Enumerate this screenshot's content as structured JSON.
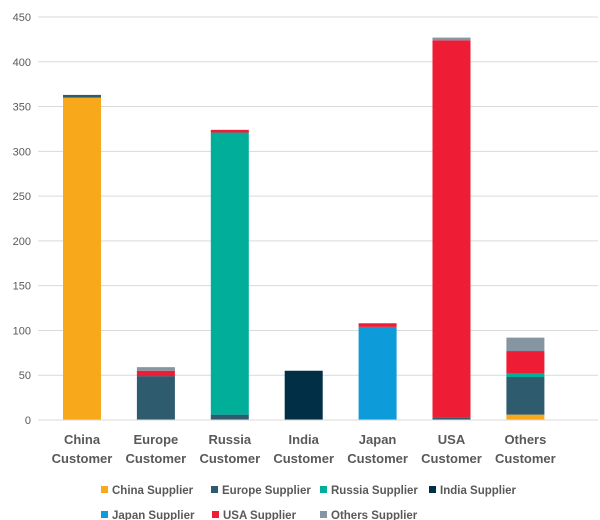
{
  "chart_data": {
    "type": "bar",
    "stacked": true,
    "categories": [
      [
        "China",
        "Customer"
      ],
      [
        "Europe",
        "Customer"
      ],
      [
        "Russia",
        "Customer"
      ],
      [
        "India",
        "Customer"
      ],
      [
        "Japan",
        "Customer"
      ],
      [
        "USA",
        "Customer"
      ],
      [
        "Others",
        "Customer"
      ]
    ],
    "series": [
      {
        "name": "China Supplier",
        "color": "#F7A81B",
        "values": [
          360,
          0,
          0,
          0,
          0,
          0,
          6
        ]
      },
      {
        "name": "Europe Supplier",
        "color": "#2F5B6E",
        "values": [
          3,
          49,
          6,
          0,
          0,
          3,
          42
        ]
      },
      {
        "name": "Russia Supplier",
        "color": "#00AE9A",
        "values": [
          0,
          0,
          315,
          0,
          0,
          0,
          4
        ]
      },
      {
        "name": "India Supplier",
        "color": "#012F45",
        "values": [
          0,
          0,
          0,
          55,
          0,
          0,
          0
        ]
      },
      {
        "name": "Japan Supplier",
        "color": "#0E9BD9",
        "values": [
          0,
          0,
          0,
          0,
          104,
          0,
          0
        ]
      },
      {
        "name": "USA Supplier",
        "color": "#EE1C34",
        "values": [
          0,
          6,
          3,
          0,
          4,
          421,
          25
        ]
      },
      {
        "name": "Others Supplier",
        "color": "#8596A2",
        "values": [
          0,
          4,
          0,
          0,
          0,
          3,
          15
        ]
      }
    ],
    "ylim": [
      0,
      450
    ],
    "yticks": [
      "0",
      "50",
      "100",
      "150",
      "200",
      "250",
      "300",
      "350",
      "400",
      "450"
    ],
    "grid": true,
    "legend": "bottom",
    "title": "",
    "xlabel": "",
    "ylabel": ""
  }
}
